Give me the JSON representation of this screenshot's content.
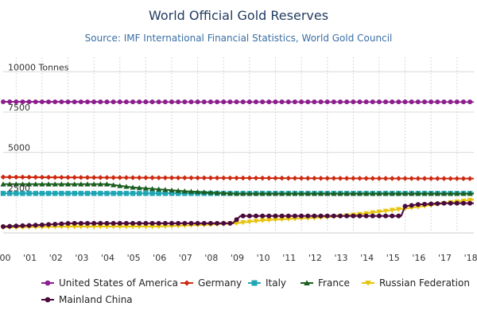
{
  "chart_data": {
    "type": "line",
    "title": "World Official Gold Reserves",
    "subtitle": "Source: IMF International Financial Statistics, World Gold Council",
    "ylabel": "Tonnes",
    "ylim": [
      0,
      11000
    ],
    "y_ticks": [
      {
        "value": 2500,
        "label": "2500"
      },
      {
        "value": 5000,
        "label": "5000"
      },
      {
        "value": 7500,
        "label": "7500"
      },
      {
        "value": 10000,
        "label": "10000 Tonnes"
      }
    ],
    "xlim": [
      2000,
      2018.15
    ],
    "x_ticks": [
      {
        "value": 2000,
        "label": "'00"
      },
      {
        "value": 2001,
        "label": "'01"
      },
      {
        "value": 2002,
        "label": "'02"
      },
      {
        "value": 2003,
        "label": "'03"
      },
      {
        "value": 2004,
        "label": "'04"
      },
      {
        "value": 2005,
        "label": "'05"
      },
      {
        "value": 2006,
        "label": "'06"
      },
      {
        "value": 2007,
        "label": "'07"
      },
      {
        "value": 2008,
        "label": "'08"
      },
      {
        "value": 2009,
        "label": "'09"
      },
      {
        "value": 2010,
        "label": "'10"
      },
      {
        "value": 2011,
        "label": "'11"
      },
      {
        "value": 2012,
        "label": "'12"
      },
      {
        "value": 2013,
        "label": "'13"
      },
      {
        "value": 2014,
        "label": "'14"
      },
      {
        "value": 2015,
        "label": "'15"
      },
      {
        "value": 2016,
        "label": "'16"
      },
      {
        "value": 2017,
        "label": "'17"
      },
      {
        "value": 2018,
        "label": "'18"
      }
    ],
    "series": [
      {
        "name": "United States of America",
        "color": "#8c1f8e",
        "marker": "circle",
        "values": [
          [
            2000,
            8136
          ],
          [
            2018.15,
            8134
          ]
        ]
      },
      {
        "name": "Germany",
        "color": "#cc2a10",
        "marker": "diamond",
        "values": [
          [
            2000,
            3468
          ],
          [
            2003,
            3440
          ],
          [
            2006,
            3422
          ],
          [
            2009,
            3408
          ],
          [
            2012,
            3391
          ],
          [
            2015,
            3381
          ],
          [
            2018.15,
            3370
          ]
        ]
      },
      {
        "name": "Italy",
        "color": "#1fa6b5",
        "marker": "square",
        "values": [
          [
            2000,
            2452
          ],
          [
            2018.15,
            2452
          ]
        ]
      },
      {
        "name": "France",
        "color": "#1b5e20",
        "marker": "triangle",
        "values": [
          [
            2000,
            3025
          ],
          [
            2004,
            3025
          ],
          [
            2005,
            2825
          ],
          [
            2006,
            2710
          ],
          [
            2007,
            2590
          ],
          [
            2008,
            2508
          ],
          [
            2009,
            2435
          ],
          [
            2018.15,
            2436
          ]
        ]
      },
      {
        "name": "Russian Federation",
        "color": "#e6c40a",
        "marker": "triangle-down",
        "values": [
          [
            2000,
            343
          ],
          [
            2002,
            387
          ],
          [
            2006,
            398
          ],
          [
            2008,
            519
          ],
          [
            2009,
            607
          ],
          [
            2010,
            775
          ],
          [
            2011,
            872
          ],
          [
            2012,
            936
          ],
          [
            2013,
            1035
          ],
          [
            2014,
            1208
          ],
          [
            2015,
            1415
          ],
          [
            2016,
            1615
          ],
          [
            2017,
            1838
          ],
          [
            2018.15,
            2066
          ]
        ]
      },
      {
        "name": "Mainland China",
        "color": "#4a0a3d",
        "marker": "circle",
        "values": [
          [
            2000,
            395
          ],
          [
            2001.5,
            500
          ],
          [
            2002.6,
            600
          ],
          [
            2008.85,
            600
          ],
          [
            2009.15,
            1054
          ],
          [
            2015.35,
            1054
          ],
          [
            2015.5,
            1658
          ],
          [
            2016,
            1762
          ],
          [
            2017,
            1842
          ],
          [
            2018.15,
            1842
          ]
        ]
      }
    ],
    "legend": {
      "position": "bottom"
    }
  }
}
